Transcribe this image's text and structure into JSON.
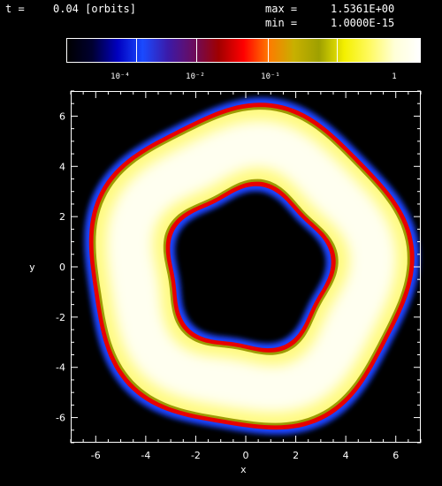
{
  "header": {
    "time_label": "t =",
    "time_value": "0.04 [orbits]",
    "max_label": "max =",
    "max_value": "1.5361E+00",
    "min_label": "min =",
    "min_value": "1.0000E-15"
  },
  "colorbar": {
    "labels": [
      "10⁻⁴",
      "10⁻²",
      "10⁻¹",
      "1"
    ],
    "label_positions_data": [
      -4,
      -2,
      -1,
      0
    ],
    "log_range": [
      -5.5,
      0.2
    ],
    "colors": [
      "#000000",
      "#000030",
      "#0000c0",
      "#1a4aff",
      "#3b1aa8",
      "#6a0c60",
      "#a00000",
      "#ff0000",
      "#ff7a00",
      "#c8b000",
      "#9ea000",
      "#f4f000",
      "#fffa60",
      "#ffffd8",
      "#ffffff"
    ]
  },
  "plot": {
    "xlabel": "x",
    "ylabel": "y",
    "xlim": [
      -7,
      7
    ],
    "ylim": [
      -7,
      7
    ],
    "xticks": [
      "-6",
      "-4",
      "-2",
      "0",
      "2",
      "4",
      "6"
    ],
    "yticks": [
      "6",
      "4",
      "2",
      "0",
      "-2",
      "-4",
      "-6"
    ],
    "ring_inner_radius": 3.4,
    "ring_outer_radius": 6.1,
    "colors": {
      "background": "#000000",
      "blue_edge": "#1e44ff",
      "red_edge": "#e80000",
      "olive_edge": "#9a9a00",
      "body": "#fffa80",
      "core": "#fffff0"
    }
  }
}
